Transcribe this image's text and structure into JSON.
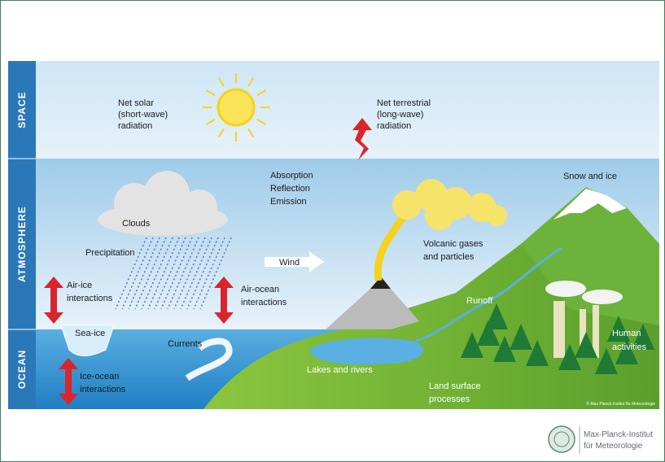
{
  "bands": [
    "SPACE",
    "ATMOSPHERE",
    "OCEAN"
  ],
  "labels": {
    "net_solar": [
      "Net solar",
      "(short-wave)",
      "radiation"
    ],
    "net_terrestrial": [
      "Net terrestrial",
      "(long-wave)",
      "radiation"
    ],
    "absorption": [
      "Absorption",
      "Reflection",
      "Emission"
    ],
    "snow_ice": [
      "Snow and ice"
    ],
    "clouds": [
      "Clouds"
    ],
    "precipitation": [
      "Precipitation"
    ],
    "wind": [
      "Wind"
    ],
    "volcanic": [
      "Volcanic gases",
      "and particles"
    ],
    "runoff": [
      "Runoff"
    ],
    "air_ice": [
      "Air-ice",
      "interactions"
    ],
    "air_ocean": [
      "Air-ocean",
      "interactions"
    ],
    "sea_ice": [
      "Sea-ice"
    ],
    "currents": [
      "Currents"
    ],
    "human": [
      "Human",
      "activities"
    ],
    "ice_ocean": [
      "Ice-ocean",
      "interactions"
    ],
    "lakes": [
      "Lakes and rivers"
    ],
    "land_surface": [
      "Land surface",
      "processes"
    ]
  },
  "credit": "© Max Planck Institut für Meteorologie",
  "logo": [
    "Max-Planck-Institut",
    "für Meteorologie"
  ]
}
